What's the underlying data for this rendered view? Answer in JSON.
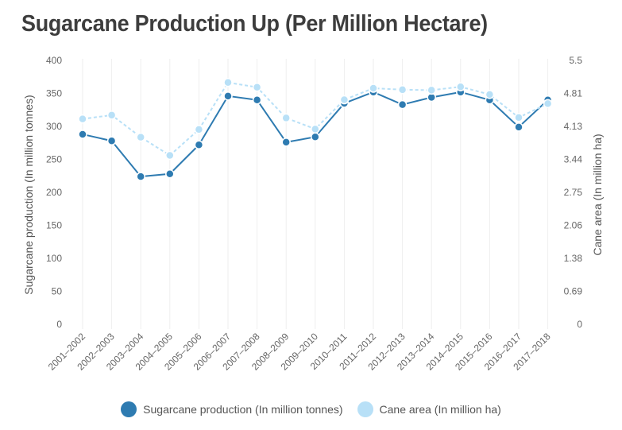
{
  "title": "Sugarcane Production Up (Per Million Hectare)",
  "colors": {
    "production": "#2e7bb1",
    "area": "#b8e0f7",
    "grid": "#eeeeee"
  },
  "chart_data": {
    "type": "line",
    "title": "Sugarcane Production Up (Per Million Hectare)",
    "categories": [
      "2001–2002",
      "2002–2003",
      "2003–2004",
      "2004–2005",
      "2005–2006",
      "2006–2007",
      "2007–2008",
      "2008–2009",
      "2009–2010",
      "2010–2011",
      "2011–2012",
      "2012–2013",
      "2013–2014",
      "2014–2015",
      "2015–2016",
      "2016–2017",
      "2017–2018"
    ],
    "y_left": {
      "label": "Sugarcane production (In million tonnes)",
      "range": [
        0,
        400
      ],
      "ticks": [
        "0",
        "50",
        "100",
        "150",
        "200",
        "250",
        "300",
        "350",
        "400"
      ]
    },
    "y_right": {
      "label": "Cane area (In million ha)",
      "range": [
        0,
        5.5
      ],
      "ticks": [
        "0",
        "0.69",
        "1.38",
        "2.06",
        "2.75",
        "3.44",
        "4.13",
        "4.81",
        "5.5"
      ]
    },
    "grid": "vertical",
    "legend_position": "bottom-center",
    "series": [
      {
        "name": "Sugarcane production (In million tonnes)",
        "axis": "left",
        "style": "solid",
        "values": [
          288,
          278,
          224,
          228,
          272,
          346,
          340,
          276,
          284,
          335,
          352,
          333,
          344,
          352,
          340,
          299,
          340
        ]
      },
      {
        "name": "Cane area (In million ha)",
        "axis": "right",
        "style": "dashed",
        "values": [
          4.28,
          4.36,
          3.9,
          3.52,
          4.06,
          5.04,
          4.94,
          4.3,
          4.07,
          4.68,
          4.92,
          4.89,
          4.88,
          4.95,
          4.79,
          4.31,
          4.6
        ]
      }
    ]
  }
}
